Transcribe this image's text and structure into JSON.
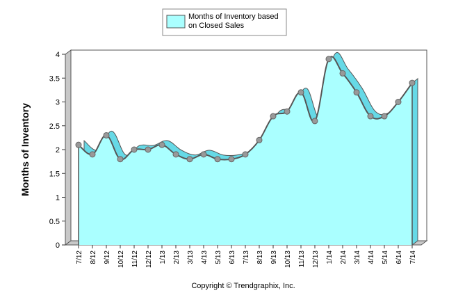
{
  "chart_data": {
    "type": "area",
    "title": "",
    "xlabel": "",
    "ylabel": "Months of Inventory",
    "ylim": [
      0,
      4
    ],
    "yticks": [
      "0",
      "0.5",
      "1",
      "1.5",
      "2",
      "2.5",
      "3",
      "3.5",
      "4"
    ],
    "categories": [
      "7/12",
      "8/12",
      "9/12",
      "10/12",
      "11/12",
      "12/12",
      "1/13",
      "2/13",
      "3/13",
      "4/13",
      "5/13",
      "6/13",
      "7/13",
      "8/13",
      "9/13",
      "10/13",
      "11/13",
      "12/13",
      "1/14",
      "2/14",
      "3/14",
      "4/14",
      "5/14",
      "6/14",
      "7/14"
    ],
    "series": [
      {
        "name": "Months of Inventory based on Closed Sales",
        "legend_lines": [
          "Months of Inventory based",
          "on Closed Sales"
        ],
        "values": [
          2.1,
          1.9,
          2.3,
          1.8,
          2.0,
          2.0,
          2.1,
          1.9,
          1.8,
          1.9,
          1.8,
          1.8,
          1.9,
          2.2,
          2.7,
          2.8,
          3.2,
          2.6,
          3.9,
          3.6,
          3.2,
          2.7,
          2.7,
          3.0,
          3.4
        ],
        "fill_color": "#aaffff",
        "line_color": "#555555",
        "marker_color": "#999999"
      }
    ],
    "legend_position": "top-center",
    "grid": false
  },
  "footer": {
    "copyright": "Copyright © Trendgraphix, Inc."
  }
}
